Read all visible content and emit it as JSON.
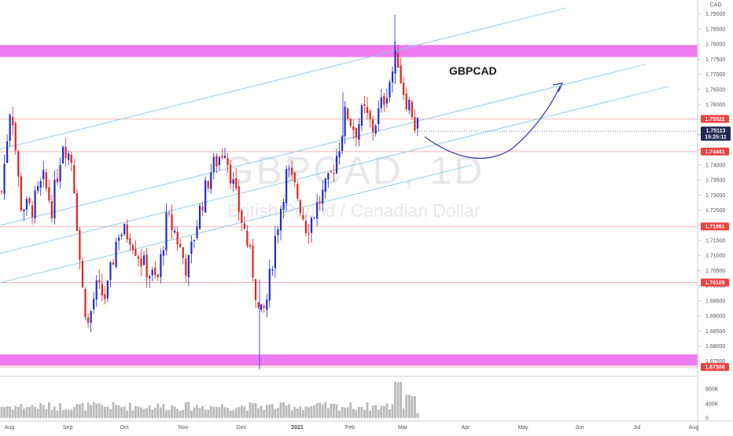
{
  "chart_data": {
    "type": "candlestick",
    "currency": "CAD",
    "title": "GBPCAD",
    "watermark": {
      "symbol": "GBPCAD, 1D",
      "name": "British Pound / Canadian Dollar"
    },
    "y_range": [
      1.6718,
      1.7946
    ],
    "y_ticks": [
      "1.79000",
      "1.78500",
      "1.78000",
      "1.77500",
      "1.77000",
      "1.76500",
      "1.76000",
      "1.75500",
      "1.75000",
      "1.74500",
      "1.74000",
      "1.73500",
      "1.73000",
      "1.72500",
      "1.72000",
      "1.71500",
      "1.71000",
      "1.70500",
      "1.70000",
      "1.69500",
      "1.69000",
      "1.68500",
      "1.68000",
      "1.67500"
    ],
    "x_labels": [
      "Aug",
      "Sep",
      "Oct",
      "Nov",
      "Dec",
      "2021",
      "Feb",
      "Mar",
      "Apr",
      "May",
      "Jun",
      "Jul",
      "Aug"
    ],
    "price_levels": [
      {
        "price": 1.75522,
        "label": "1.75522"
      },
      {
        "price": 1.74441,
        "label": "1.74441"
      },
      {
        "price": 1.71961,
        "label": "1.71961"
      },
      {
        "price": 1.70105,
        "label": "1.70105"
      },
      {
        "price": 1.67308,
        "label": "1.67308"
      }
    ],
    "current": {
      "price": 1.75113,
      "label": "1.75113",
      "countdown": "15:25:11"
    },
    "zones": [
      {
        "low": 1.7757,
        "high": 1.7797
      },
      {
        "low": 1.6735,
        "high": 1.6772
      }
    ],
    "volume": {
      "ticks": [
        "800K",
        "400K",
        "0"
      ],
      "max": 1000000
    },
    "colors": {
      "up": "#1f2bd6",
      "down": "#e1231f",
      "zone": "#ee7cf0",
      "channel": "#8fc7ea",
      "arrow": "#3b3ba8",
      "level_line": "#f7a6a6",
      "level_badge": "#f04040",
      "current_badge": "#1f2a52",
      "volume_bar": "#b9b9b9"
    },
    "grid": false,
    "arrow_annotation": "projected dip then rise"
  }
}
